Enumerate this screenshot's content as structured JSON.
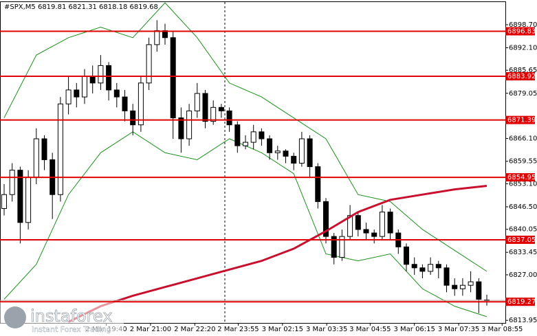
{
  "header": "#SPX,M5  6819.81 6821.31 6818.18 6819.68",
  "logo": {
    "name": "instaforex",
    "tagline": "Instant Forex Trading"
  },
  "chart_data": {
    "type": "candlestick",
    "open": [
      6846,
      6850,
      6857,
      6842,
      6855,
      6866,
      6860,
      6850,
      6876,
      6880,
      6878,
      6884,
      6882,
      6887,
      6880,
      6878,
      6874,
      6870,
      6882,
      6893,
      6897,
      6895,
      6872,
      6866,
      6874,
      6879,
      6871,
      6875,
      6874,
      6870,
      6864,
      6865,
      6868,
      6866,
      6862,
      6862.5,
      6861,
      6859,
      6866,
      6858,
      6848,
      6838,
      6832,
      6838,
      6844,
      6840,
      6839,
      6838,
      6845,
      6839,
      6835,
      6830,
      6829,
      6828,
      6830,
      6829,
      6824,
      6823,
      6824,
      6825,
      6819.81
    ],
    "high": [
      6853,
      6859,
      6858,
      6857,
      6869,
      6867,
      6862,
      6878,
      6884,
      6882,
      6886,
      6887,
      6890,
      6888,
      6882,
      6880,
      6876,
      6884,
      6895,
      6900,
      6899,
      6897,
      6875,
      6876,
      6882,
      6880,
      6877,
      6876,
      6875,
      6871,
      6867,
      6870,
      6869,
      6867,
      6864,
      6863,
      6862,
      6868,
      6867,
      6859,
      6849,
      6839,
      6840,
      6847,
      6845,
      6842,
      6840,
      6847,
      6846,
      6840,
      6836,
      6832,
      6830,
      6832,
      6831,
      6830,
      6826,
      6826,
      6828,
      6826,
      6821.31
    ],
    "low": [
      6844,
      6848,
      6836,
      6840,
      6853,
      6857,
      6843,
      6848,
      6873,
      6875,
      6876,
      6879,
      6880,
      6877,
      6875,
      6871,
      6867,
      6868,
      6880,
      6891,
      6893,
      6866,
      6862,
      6864,
      6872,
      6869,
      6870,
      6872,
      6868,
      6862,
      6863,
      6863,
      6864,
      6860,
      6860,
      6859,
      6857,
      6858,
      6855,
      6846,
      6836,
      6830,
      6831,
      6837,
      6838,
      6837,
      6836,
      6837,
      6837,
      6833,
      6828,
      6827,
      6826,
      6827,
      6826,
      6822,
      6821,
      6821,
      6822,
      6816,
      6818.18
    ],
    "close": [
      6850,
      6857,
      6842,
      6855,
      6866,
      6860,
      6850,
      6876,
      6880,
      6878,
      6884,
      6882,
      6887,
      6880,
      6878,
      6874,
      6870,
      6882,
      6893,
      6897,
      6895,
      6872,
      6866,
      6874,
      6879,
      6871,
      6875,
      6874,
      6870,
      6864,
      6865,
      6868,
      6866,
      6862,
      6862.5,
      6861,
      6859,
      6866,
      6858,
      6848,
      6838,
      6832,
      6838,
      6844,
      6840,
      6839,
      6838,
      6845,
      6839,
      6835,
      6830,
      6829,
      6828,
      6830,
      6829,
      6824,
      6823,
      6824,
      6825,
      6820,
      6819.68
    ],
    "bands": {
      "color": "#1a8f1a",
      "x": [
        0,
        4,
        8,
        12,
        16,
        20,
        24,
        28,
        32,
        36,
        40,
        44,
        48,
        52,
        56,
        60
      ],
      "upper": [
        6872,
        6890,
        6895,
        6898,
        6895,
        6905,
        6895,
        6882,
        6878,
        6872,
        6866,
        6850,
        6848,
        6840,
        6834,
        6828
      ],
      "lower": [
        6820,
        6830,
        6850,
        6862,
        6868,
        6862,
        6860,
        6866,
        6862,
        6856,
        6833,
        6831,
        6833,
        6823,
        6818,
        6815
      ]
    },
    "ma": {
      "color": "#c8102e",
      "x": [
        8,
        12,
        16,
        20,
        24,
        28,
        32,
        36,
        40,
        44,
        48,
        52,
        56,
        60
      ],
      "values": [
        6813.5,
        6818,
        6821,
        6823.5,
        6826,
        6828.5,
        6831,
        6834.5,
        6839.5,
        6845,
        6848.5,
        6850,
        6851.5,
        6852.5
      ]
    },
    "levels": [
      6896.83,
      6883.92,
      6871.39,
      6854.95,
      6837.05,
      6819.27
    ],
    "level_color": "#e00000",
    "ylim": [
      6813.2,
      6905.4
    ],
    "yticks": [
      {
        "value": 6898.7,
        "label": "6898.70"
      },
      {
        "value": 6892.1,
        "label": "6892.10"
      },
      6885.65,
      6879.05,
      {
        "value": 6866.1,
        "label": "6866.10"
      },
      6859.55,
      {
        "value": 6853.1,
        "label": "6853.10"
      },
      {
        "value": 6846.5,
        "label": "6846.50"
      },
      6840.05,
      6833.45,
      {
        "value": 6827,
        "label": "6827.00"
      },
      6813.95
    ],
    "xticks": [
      {
        "value": 12.7,
        "label": "2 Mar 19:40"
      },
      {
        "value": 18.2,
        "label": "2 Mar 21:00"
      },
      {
        "value": 23.7,
        "label": "2 Mar 22:20"
      },
      {
        "value": 29.1,
        "label": "2 Mar 23:55"
      },
      {
        "value": 34.6,
        "label": "3 Mar 02:15"
      },
      {
        "value": 40.1,
        "label": "3 Mar 03:35"
      },
      {
        "value": 45.5,
        "label": "3 Mar 04:55"
      },
      {
        "value": 51,
        "label": "3 Mar 06:15"
      },
      {
        "value": 56.5,
        "label": "3 Mar 07:35"
      },
      {
        "value": 61.9,
        "label": "3 Mar 08:55"
      }
    ]
  }
}
